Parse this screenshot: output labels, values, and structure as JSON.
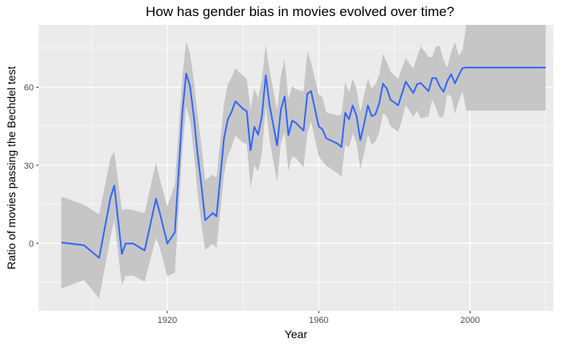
{
  "chart_data": {
    "type": "line",
    "title": "How has gender bias in movies evolved over time?",
    "xlabel": "Year",
    "ylabel": "Ratio of movies passing the Bechdel test",
    "xlim": [
      1886,
      2022
    ],
    "ylim": [
      -26,
      84
    ],
    "x_ticks": [
      1920,
      1960,
      2000
    ],
    "y_ticks": [
      0,
      30,
      60
    ],
    "grid": true,
    "legend": "none",
    "colors": {
      "line": "#3366ff",
      "ribbon": "#c6c6c6",
      "panel": "#ebebeb",
      "grid": "#ffffff"
    },
    "series": [
      {
        "x": [
          1892,
          1898,
          1902,
          1905,
          1906,
          1908,
          1909,
          1911,
          1914,
          1917,
          1918,
          1920,
          1922,
          1924,
          1925,
          1926,
          1927,
          1928,
          1929,
          1930,
          1932,
          1933,
          1935,
          1936,
          1937,
          1938,
          1940,
          1941,
          1942,
          1943,
          1944,
          1945,
          1946,
          1947,
          1949,
          1950,
          1951,
          1952,
          1953,
          1954,
          1956,
          1957,
          1958,
          1960,
          1961,
          1962,
          1965,
          1966,
          1967,
          1968,
          1969,
          1970,
          1971,
          1972,
          1973,
          1974,
          1975,
          1976,
          1977,
          1978,
          1979,
          1981,
          1982,
          1983,
          1985,
          1986,
          1987,
          1989,
          1990,
          1991,
          1992,
          1993,
          1994,
          1995,
          1996,
          1997,
          1998,
          1999,
          2000,
          2001,
          2002,
          2003,
          2004,
          2005,
          2006,
          2007,
          2008,
          2010,
          2012,
          2013,
          2014,
          2015,
          2016,
          2017,
          2018,
          2020
        ],
        "y": [
          0.3,
          -0.8,
          -5.6,
          17.6,
          22.2,
          -4.1,
          -0.1,
          -0.1,
          -2.8,
          17.1,
          11.8,
          -0.1,
          4.2,
          50.6,
          65.3,
          60.5,
          49.0,
          34.5,
          22.3,
          8.9,
          11.6,
          10.4,
          40.6,
          47.7,
          50.6,
          54.6,
          51.7,
          50.8,
          35.7,
          44.8,
          41.8,
          48.9,
          64.6,
          53.3,
          37.6,
          51.4,
          56.5,
          41.6,
          47.2,
          46.3,
          43.3,
          57.5,
          58.5,
          45.0,
          43.8,
          40.4,
          38.3,
          37.0,
          50.2,
          47.7,
          53.0,
          48.9,
          39.7,
          45.9,
          53.0,
          48.9,
          49.6,
          53.9,
          61.4,
          59.5,
          55.2,
          53.1,
          57.6,
          62.2,
          57.8,
          61.2,
          61.6,
          58.5,
          63.5,
          63.5,
          60.3,
          58.3,
          62.4,
          65.1,
          61.5,
          64.7,
          67.4,
          67.6,
          67.6,
          67.6,
          67.6,
          67.6,
          67.6,
          67.6,
          67.6,
          67.6,
          67.6,
          67.6,
          67.6,
          67.6,
          67.6,
          67.6,
          67.6,
          67.6,
          67.6,
          67.6
        ],
        "upper": [
          18.0,
          14.8,
          11.2,
          32.8,
          35.4,
          12.8,
          13.2,
          12.8,
          11.6,
          31.2,
          24.8,
          14.2,
          22.6,
          64.2,
          77.6,
          73.2,
          62.8,
          49.8,
          37.8,
          24.2,
          26.4,
          25.2,
          53.8,
          61.2,
          63.8,
          67.4,
          64.4,
          63.2,
          51.6,
          59.6,
          55.8,
          63.2,
          76.4,
          66.6,
          51.2,
          64.4,
          70.8,
          55.4,
          60.4,
          59.2,
          58.4,
          73.8,
          69.6,
          57.2,
          56.2,
          50.4,
          49.2,
          49.4,
          62.2,
          58.0,
          63.4,
          59.2,
          50.4,
          57.0,
          63.4,
          59.6,
          61.2,
          64.8,
          72.8,
          69.6,
          66.0,
          63.2,
          67.4,
          71.2,
          67.2,
          71.8,
          75.8,
          71.8,
          71.6,
          75.8,
          75.8,
          70.4,
          67.6,
          73.6,
          77.4,
          72.2,
          74.4,
          84.0,
          84.0,
          84.0,
          84.0,
          84.0,
          84.0,
          84.0,
          84.0,
          84.0,
          84.0,
          84.0,
          84.0,
          84.0,
          84.0,
          84.0,
          84.0,
          84.0,
          84.0,
          84.0
        ],
        "lower": [
          -17.4,
          -14.2,
          -21.2,
          2.4,
          9.0,
          -16.2,
          -12.6,
          -12.4,
          -14.8,
          2.0,
          -1.6,
          -12.6,
          -11.4,
          36.4,
          52.6,
          47.6,
          35.0,
          19.6,
          7.2,
          -2.6,
          -0.2,
          -1.8,
          26.6,
          33.6,
          37.0,
          41.4,
          38.6,
          38.4,
          21.2,
          30.0,
          27.6,
          34.2,
          52.8,
          39.8,
          23.6,
          38.6,
          42.8,
          27.8,
          33.4,
          32.8,
          29.2,
          42.2,
          46.8,
          33.6,
          31.6,
          29.8,
          27.0,
          25.6,
          38.0,
          36.8,
          42.2,
          38.6,
          28.6,
          34.6,
          42.0,
          37.8,
          39.2,
          42.6,
          50.0,
          48.8,
          45.0,
          42.8,
          47.6,
          53.2,
          48.6,
          51.0,
          48.0,
          48.8,
          55.2,
          52.0,
          48.2,
          49.0,
          57.2,
          56.6,
          49.8,
          54.8,
          58.4,
          51.0,
          51.0,
          51.0,
          51.0,
          51.0,
          51.0,
          51.0,
          51.0,
          51.0,
          51.0,
          51.0,
          51.0,
          51.0,
          51.0,
          51.0,
          51.0,
          51.0,
          51.0,
          51.0
        ]
      }
    ]
  }
}
